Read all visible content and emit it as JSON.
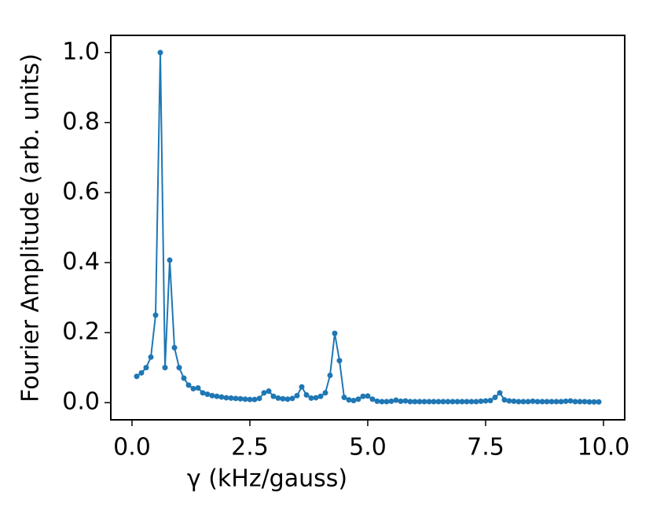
{
  "chart_data": {
    "type": "line",
    "xlabel": "γ (kHz/gauss)",
    "ylabel": "Fourier Amplitude (arb. units)",
    "xlim": [
      -0.45,
      10.45
    ],
    "ylim": [
      -0.049,
      1.049
    ],
    "xticks": [
      {
        "value": 0,
        "label": "0.0"
      },
      {
        "value": 2.5,
        "label": "2.5"
      },
      {
        "value": 5,
        "label": "5.0"
      },
      {
        "value": 7.5,
        "label": "7.5"
      },
      {
        "value": 10,
        "label": "10.0"
      }
    ],
    "yticks": [
      {
        "value": 0,
        "label": "0.0"
      },
      {
        "value": 0.2,
        "label": "0.2"
      },
      {
        "value": 0.4,
        "label": "0.4"
      },
      {
        "value": 0.6,
        "label": "0.6"
      },
      {
        "value": 0.8,
        "label": "0.8"
      },
      {
        "value": 1,
        "label": "1.0"
      }
    ],
    "series": [
      {
        "color": "#1f77b4",
        "x": [
          0.1,
          0.2,
          0.3,
          0.4,
          0.5,
          0.6,
          0.7,
          0.8,
          0.9,
          1.0,
          1.1,
          1.2,
          1.3,
          1.4,
          1.5,
          1.6,
          1.7,
          1.8,
          1.9,
          2.0,
          2.1,
          2.2,
          2.3,
          2.4,
          2.5,
          2.6,
          2.7,
          2.8,
          2.9,
          3.0,
          3.1,
          3.2,
          3.3,
          3.4,
          3.5,
          3.6,
          3.7,
          3.8,
          3.9,
          4.0,
          4.1,
          4.2,
          4.3,
          4.4,
          4.5,
          4.6,
          4.7,
          4.8,
          4.9,
          5.0,
          5.1,
          5.2,
          5.3,
          5.4,
          5.5,
          5.6,
          5.7,
          5.8,
          5.9,
          6.0,
          6.1,
          6.2,
          6.3,
          6.4,
          6.5,
          6.6,
          6.7,
          6.8,
          6.9,
          7.0,
          7.1,
          7.2,
          7.3,
          7.4,
          7.5,
          7.6,
          7.7,
          7.8,
          7.9,
          8.0,
          8.1,
          8.2,
          8.3,
          8.4,
          8.5,
          8.6,
          8.7,
          8.8,
          8.9,
          9.0,
          9.1,
          9.2,
          9.3,
          9.4,
          9.5,
          9.6,
          9.7,
          9.8,
          9.9
        ],
        "values": [
          0.075,
          0.085,
          0.1,
          0.13,
          0.25,
          1.0,
          0.1,
          0.407,
          0.157,
          0.1,
          0.07,
          0.05,
          0.04,
          0.042,
          0.028,
          0.024,
          0.02,
          0.018,
          0.016,
          0.014,
          0.013,
          0.012,
          0.011,
          0.01,
          0.009,
          0.009,
          0.012,
          0.028,
          0.033,
          0.018,
          0.013,
          0.011,
          0.01,
          0.012,
          0.02,
          0.045,
          0.022,
          0.013,
          0.014,
          0.018,
          0.028,
          0.078,
          0.198,
          0.12,
          0.015,
          0.008,
          0.006,
          0.01,
          0.018,
          0.019,
          0.01,
          0.004,
          0.003,
          0.003,
          0.004,
          0.007,
          0.004,
          0.005,
          0.003,
          0.003,
          0.003,
          0.003,
          0.003,
          0.003,
          0.003,
          0.003,
          0.003,
          0.003,
          0.003,
          0.003,
          0.003,
          0.003,
          0.003,
          0.004,
          0.005,
          0.006,
          0.015,
          0.028,
          0.008,
          0.005,
          0.004,
          0.003,
          0.003,
          0.003,
          0.004,
          0.003,
          0.003,
          0.003,
          0.003,
          0.003,
          0.003,
          0.004,
          0.005,
          0.003,
          0.003,
          0.003,
          0.002,
          0.002,
          0.002
        ]
      }
    ]
  }
}
